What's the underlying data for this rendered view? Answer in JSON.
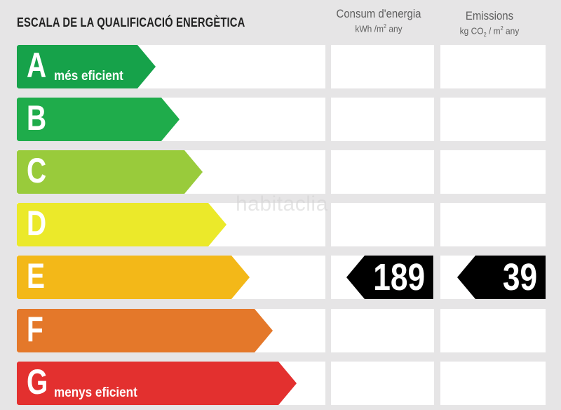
{
  "header": {
    "title": "ESCALA DE LA QUALIFICACIÓ ENERGÈTICA",
    "energy_label": "Consum d'energia",
    "energy_unit_prefix": "kWh /m",
    "energy_unit_exp": "2",
    "energy_unit_suffix": " any",
    "emissions_label": "Emissions",
    "emissions_unit_prefix": "kg CO",
    "emissions_unit_sub": "2",
    "emissions_unit_mid": " / m",
    "emissions_unit_exp": "2",
    "emissions_unit_suffix": " any"
  },
  "ratings": [
    {
      "letter": "A",
      "sublabel": "més eficient",
      "color": "#16a24a"
    },
    {
      "letter": "B",
      "sublabel": "",
      "color": "#1fac4b"
    },
    {
      "letter": "C",
      "sublabel": "",
      "color": "#99cb3b"
    },
    {
      "letter": "D",
      "sublabel": "",
      "color": "#ebe92a"
    },
    {
      "letter": "E",
      "sublabel": "",
      "color": "#f3b818"
    },
    {
      "letter": "F",
      "sublabel": "",
      "color": "#e4782a"
    },
    {
      "letter": "G",
      "sublabel": "menys eficient",
      "color": "#e3302f"
    }
  ],
  "current_rating": {
    "letter": "E",
    "energy_consumption": "189",
    "emissions": "39"
  },
  "watermark": "habitaclia"
}
